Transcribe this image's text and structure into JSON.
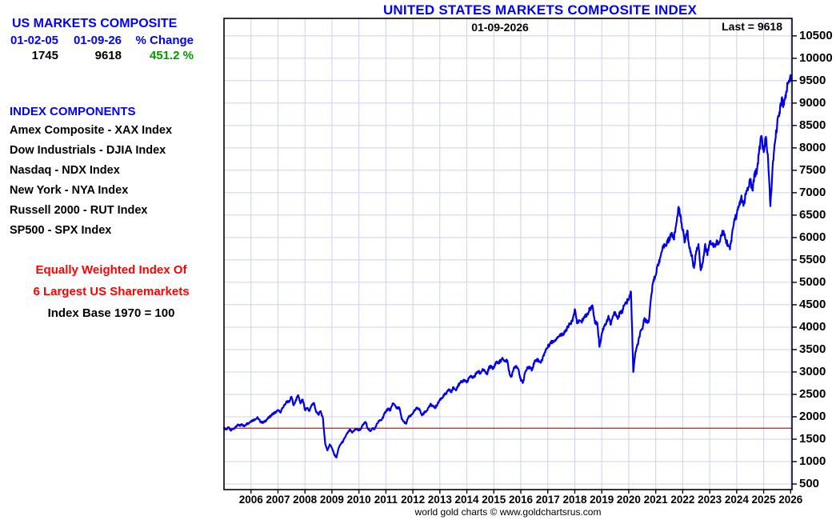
{
  "left_panel": {
    "title": "US MARKETS COMPOSITE",
    "col_headers": [
      "01-02-05",
      "01-09-26",
      "% Change"
    ],
    "values": [
      "1745",
      "9618",
      "451.2 %"
    ],
    "components_title": "INDEX COMPONENTS",
    "components": [
      "Amex Composite - XAX Index",
      "Dow Industrials - DJIA Index",
      "Nasdaq - NDX Index",
      "New York - NYA Index",
      "Russell 2000 - RUT Index",
      "SP500 - SPX Index"
    ],
    "note_red_1": "Equally Weighted Index Of",
    "note_red_2": "6 Largest US Sharemarkets",
    "note_black": "Index Base 1970 = 100"
  },
  "chart": {
    "title": "UNITED STATES MARKETS COMPOSITE INDEX",
    "date_label": "01-09-2026",
    "last_label": "Last = 9618",
    "footer": "world gold charts © www.goldchartsrus.com"
  },
  "colors": {
    "heading_blue": "#0000ff",
    "value_green": "#009900",
    "note_red": "#ff0000",
    "line_blue": "#0000e8",
    "reference_red": "#ff0000",
    "grid": "#cdd1ee",
    "axis": "#000000"
  },
  "chart_data": {
    "type": "line",
    "title": "UNITED STATES MARKETS COMPOSITE INDEX",
    "xlabel": "",
    "ylabel": "",
    "x_range": [
      2005.0,
      2026.05
    ],
    "y_range": [
      375,
      10890
    ],
    "x_ticks": [
      2006,
      2007,
      2008,
      2009,
      2010,
      2011,
      2012,
      2013,
      2014,
      2015,
      2016,
      2017,
      2018,
      2019,
      2020,
      2021,
      2022,
      2023,
      2024,
      2025,
      2026
    ],
    "y_ticks": [
      500,
      1000,
      1500,
      2000,
      2500,
      3000,
      3500,
      4000,
      4500,
      5000,
      5500,
      6000,
      6500,
      7000,
      7500,
      8000,
      8500,
      9000,
      9500,
      10000,
      10500
    ],
    "grid": true,
    "legend": "none",
    "reference_line": {
      "value": 1745,
      "color": "#ff0000"
    },
    "series": [
      {
        "name": "US Markets Composite",
        "color": "#0000e8",
        "start_year": 2005,
        "interval": "monthly",
        "values": [
          1745,
          1720,
          1760,
          1690,
          1730,
          1765,
          1815,
          1800,
          1835,
          1785,
          1845,
          1860,
          1905,
          1925,
          1950,
          1980,
          1905,
          1870,
          1885,
          1940,
          1980,
          2035,
          2075,
          2105,
          2140,
          2100,
          2190,
          2270,
          2345,
          2330,
          2450,
          2255,
          2380,
          2480,
          2300,
          2385,
          2155,
          2200,
          2130,
          2265,
          2310,
          2105,
          2050,
          2125,
          1960,
          1400,
          1250,
          1385,
          1305,
          1160,
          1090,
          1305,
          1400,
          1455,
          1560,
          1645,
          1705,
          1645,
          1705,
          1725,
          1695,
          1745,
          1835,
          1885,
          1730,
          1680,
          1745,
          1725,
          1845,
          1905,
          1925,
          2025,
          2125,
          2185,
          2140,
          2300,
          2260,
          2180,
          2205,
          1950,
          1890,
          1845,
          1995,
          2010,
          2085,
          2150,
          2205,
          2160,
          2030,
          2090,
          2135,
          2205,
          2280,
          2230,
          2205,
          2285,
          2385,
          2425,
          2490,
          2525,
          2615,
          2545,
          2655,
          2600,
          2695,
          2745,
          2795,
          2825,
          2765,
          2875,
          2895,
          2880,
          2945,
          3015,
          2960,
          3065,
          3015,
          2945,
          3125,
          3105,
          3085,
          3225,
          3195,
          3255,
          3295,
          3235,
          3255,
          2950,
          2905,
          3105,
          3135,
          3055,
          2805,
          2770,
          3005,
          3085,
          3105,
          3045,
          3225,
          3275,
          3255,
          3215,
          3355,
          3485,
          3555,
          3645,
          3675,
          3705,
          3755,
          3805,
          3855,
          3825,
          3935,
          4005,
          4085,
          4135,
          4400,
          4085,
          4155,
          4105,
          4225,
          4255,
          4325,
          4440,
          4445,
          4085,
          4105,
          3560,
          3855,
          4025,
          4085,
          4255,
          4055,
          4255,
          4335,
          4185,
          4305,
          4345,
          4485,
          4565,
          4605,
          4790,
          3000,
          3455,
          3605,
          3855,
          3955,
          4205,
          4105,
          4155,
          4705,
          5055,
          5155,
          5405,
          5555,
          5755,
          5805,
          5905,
          5955,
          6105,
          5955,
          6255,
          6655,
          6505,
          6155,
          5905,
          6155,
          5755,
          5605,
          5320,
          5705,
          5855,
          5270,
          5455,
          5855,
          5605,
          5905,
          5855,
          5805,
          5905,
          5855,
          6055,
          6135,
          5955,
          5855,
          5735,
          6105,
          6405,
          6505,
          6705,
          6905,
          6705,
          6955,
          7055,
          7305,
          7055,
          7405,
          7505,
          7955,
          8270,
          7905,
          8250,
          7705,
          6700,
          7605,
          8105,
          8505,
          8805,
          9105,
          8955,
          9255,
          9455
        ],
        "last_point": {
          "t": 2026.03,
          "value": 9618
        }
      }
    ]
  }
}
